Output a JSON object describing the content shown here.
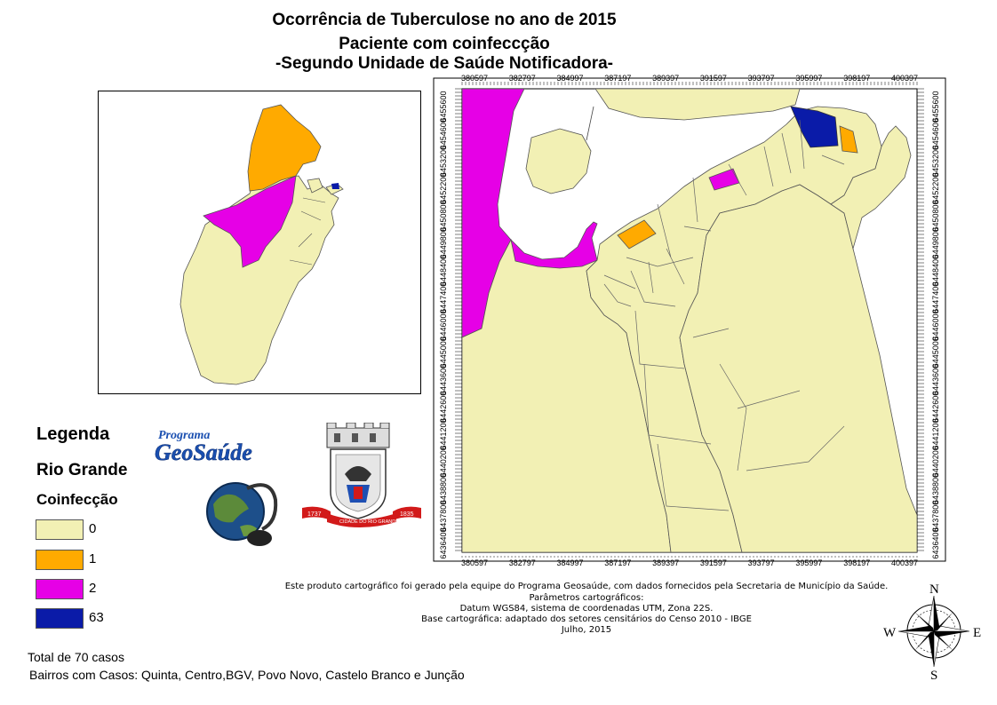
{
  "title": {
    "line1": "Ocorrência de Tuberculose no ano de 2015",
    "line2": "Paciente com coinfeccção",
    "line3": "-Segundo Unidade de Saúde Notificadora-"
  },
  "grid": {
    "x_labels": [
      "380597",
      "382797",
      "384997",
      "387197",
      "389397",
      "391597",
      "393797",
      "395997",
      "398197",
      "400397"
    ],
    "y_labels": [
      "6455600",
      "6454600",
      "6453200",
      "6452200",
      "6450800",
      "6449800",
      "6448400",
      "6447400",
      "6446000",
      "6445000",
      "6443600",
      "6442600",
      "6441200",
      "6440200",
      "6438800",
      "6437800",
      "6436400"
    ]
  },
  "legend": {
    "heading": "Legenda",
    "region": "Rio Grande",
    "variable": "Coinfecção",
    "items": [
      {
        "label": "0",
        "color": "#f2f0b4"
      },
      {
        "label": "1",
        "color": "#ffaa00"
      },
      {
        "label": "2",
        "color": "#e600e6"
      },
      {
        "label": "63",
        "color": "#0a1ba8"
      }
    ]
  },
  "logos": {
    "program_small": "Programa",
    "program_big": "GeoSaúde",
    "arms_left_year": "1737",
    "arms_banner": "CIDADE DO RIO GRANDE",
    "arms_right_year": "1835"
  },
  "summary": {
    "total": "Total de 70 casos",
    "bairros": "Bairros com Casos: Quinta, Centro,BGV, Povo Novo, Castelo Branco e Junção"
  },
  "credits": {
    "line1": "Este produto cartográfico foi gerado pela equipe do Programa Geosaúde, com dados fornecidos pela Secretaria de Município da Saúde.",
    "line2": "Parâmetros cartográficos:",
    "line3": "Datum WGS84, sistema de coordenadas UTM, Zona 22S.",
    "line4": "Base cartográfica: adaptado dos setores censitários do Censo 2010 - IBGE",
    "line5": "Julho, 2015"
  },
  "compass": {
    "n": "N",
    "s": "S",
    "e": "E",
    "w": "W"
  }
}
